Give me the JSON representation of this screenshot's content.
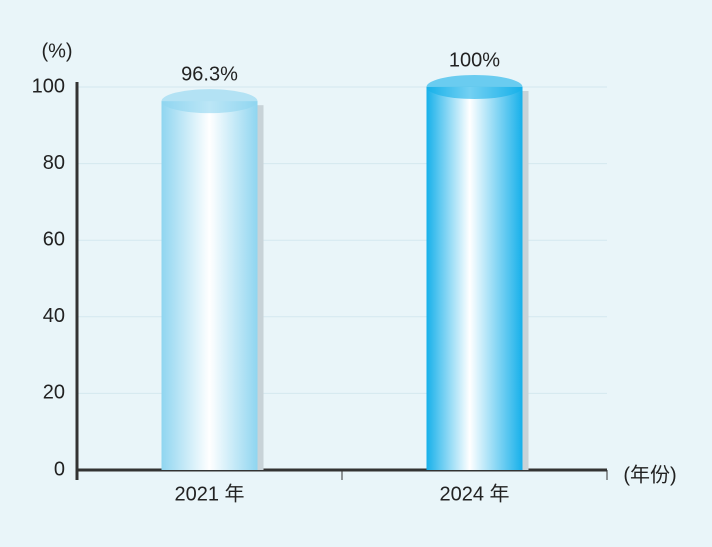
{
  "chart_data": {
    "type": "bar",
    "y_label": "(%)",
    "x_label": "(年份)",
    "categories": [
      "2021 年",
      "2024 年"
    ],
    "values": [
      96.3,
      100
    ],
    "value_labels": [
      "96.3%",
      "100%"
    ],
    "colors": [
      "#8fd5f0",
      "#16b0ea"
    ],
    "ylim": [
      0,
      100
    ],
    "yticks": [
      0,
      20,
      40,
      60,
      80,
      100
    ],
    "grid": true
  }
}
